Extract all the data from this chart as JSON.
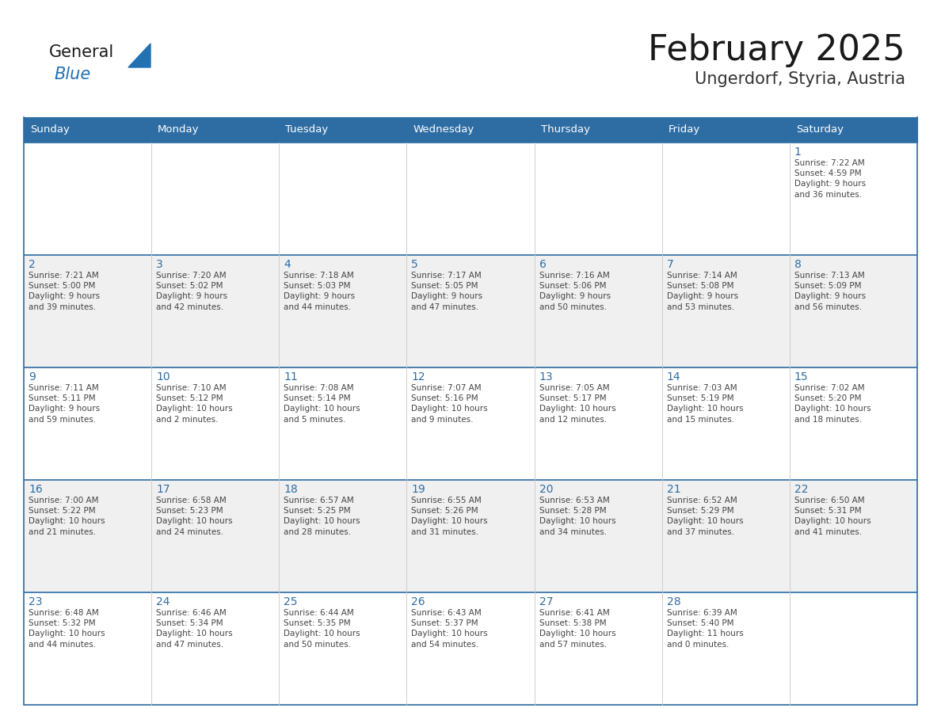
{
  "title": "February 2025",
  "subtitle": "Ungerdorf, Styria, Austria",
  "header_bg": "#2E6DA4",
  "header_text_color": "#FFFFFF",
  "border_color": "#2E6DA4",
  "day_headers": [
    "Sunday",
    "Monday",
    "Tuesday",
    "Wednesday",
    "Thursday",
    "Friday",
    "Saturday"
  ],
  "title_color": "#1a1a1a",
  "subtitle_color": "#333333",
  "day_num_color": "#2E6DA4",
  "info_color": "#444444",
  "row_bg_even": "#FFFFFF",
  "row_bg_odd": "#F0F0F0",
  "calendar": [
    [
      null,
      null,
      null,
      null,
      null,
      null,
      1
    ],
    [
      2,
      3,
      4,
      5,
      6,
      7,
      8
    ],
    [
      9,
      10,
      11,
      12,
      13,
      14,
      15
    ],
    [
      16,
      17,
      18,
      19,
      20,
      21,
      22
    ],
    [
      23,
      24,
      25,
      26,
      27,
      28,
      null
    ]
  ],
  "sun_data": {
    "1": {
      "rise": "7:22 AM",
      "set": "4:59 PM",
      "daylight": "9 hours\nand 36 minutes."
    },
    "2": {
      "rise": "7:21 AM",
      "set": "5:00 PM",
      "daylight": "9 hours\nand 39 minutes."
    },
    "3": {
      "rise": "7:20 AM",
      "set": "5:02 PM",
      "daylight": "9 hours\nand 42 minutes."
    },
    "4": {
      "rise": "7:18 AM",
      "set": "5:03 PM",
      "daylight": "9 hours\nand 44 minutes."
    },
    "5": {
      "rise": "7:17 AM",
      "set": "5:05 PM",
      "daylight": "9 hours\nand 47 minutes."
    },
    "6": {
      "rise": "7:16 AM",
      "set": "5:06 PM",
      "daylight": "9 hours\nand 50 minutes."
    },
    "7": {
      "rise": "7:14 AM",
      "set": "5:08 PM",
      "daylight": "9 hours\nand 53 minutes."
    },
    "8": {
      "rise": "7:13 AM",
      "set": "5:09 PM",
      "daylight": "9 hours\nand 56 minutes."
    },
    "9": {
      "rise": "7:11 AM",
      "set": "5:11 PM",
      "daylight": "9 hours\nand 59 minutes."
    },
    "10": {
      "rise": "7:10 AM",
      "set": "5:12 PM",
      "daylight": "10 hours\nand 2 minutes."
    },
    "11": {
      "rise": "7:08 AM",
      "set": "5:14 PM",
      "daylight": "10 hours\nand 5 minutes."
    },
    "12": {
      "rise": "7:07 AM",
      "set": "5:16 PM",
      "daylight": "10 hours\nand 9 minutes."
    },
    "13": {
      "rise": "7:05 AM",
      "set": "5:17 PM",
      "daylight": "10 hours\nand 12 minutes."
    },
    "14": {
      "rise": "7:03 AM",
      "set": "5:19 PM",
      "daylight": "10 hours\nand 15 minutes."
    },
    "15": {
      "rise": "7:02 AM",
      "set": "5:20 PM",
      "daylight": "10 hours\nand 18 minutes."
    },
    "16": {
      "rise": "7:00 AM",
      "set": "5:22 PM",
      "daylight": "10 hours\nand 21 minutes."
    },
    "17": {
      "rise": "6:58 AM",
      "set": "5:23 PM",
      "daylight": "10 hours\nand 24 minutes."
    },
    "18": {
      "rise": "6:57 AM",
      "set": "5:25 PM",
      "daylight": "10 hours\nand 28 minutes."
    },
    "19": {
      "rise": "6:55 AM",
      "set": "5:26 PM",
      "daylight": "10 hours\nand 31 minutes."
    },
    "20": {
      "rise": "6:53 AM",
      "set": "5:28 PM",
      "daylight": "10 hours\nand 34 minutes."
    },
    "21": {
      "rise": "6:52 AM",
      "set": "5:29 PM",
      "daylight": "10 hours\nand 37 minutes."
    },
    "22": {
      "rise": "6:50 AM",
      "set": "5:31 PM",
      "daylight": "10 hours\nand 41 minutes."
    },
    "23": {
      "rise": "6:48 AM",
      "set": "5:32 PM",
      "daylight": "10 hours\nand 44 minutes."
    },
    "24": {
      "rise": "6:46 AM",
      "set": "5:34 PM",
      "daylight": "10 hours\nand 47 minutes."
    },
    "25": {
      "rise": "6:44 AM",
      "set": "5:35 PM",
      "daylight": "10 hours\nand 50 minutes."
    },
    "26": {
      "rise": "6:43 AM",
      "set": "5:37 PM",
      "daylight": "10 hours\nand 54 minutes."
    },
    "27": {
      "rise": "6:41 AM",
      "set": "5:38 PM",
      "daylight": "10 hours\nand 57 minutes."
    },
    "28": {
      "rise": "6:39 AM",
      "set": "5:40 PM",
      "daylight": "11 hours\nand 0 minutes."
    }
  }
}
